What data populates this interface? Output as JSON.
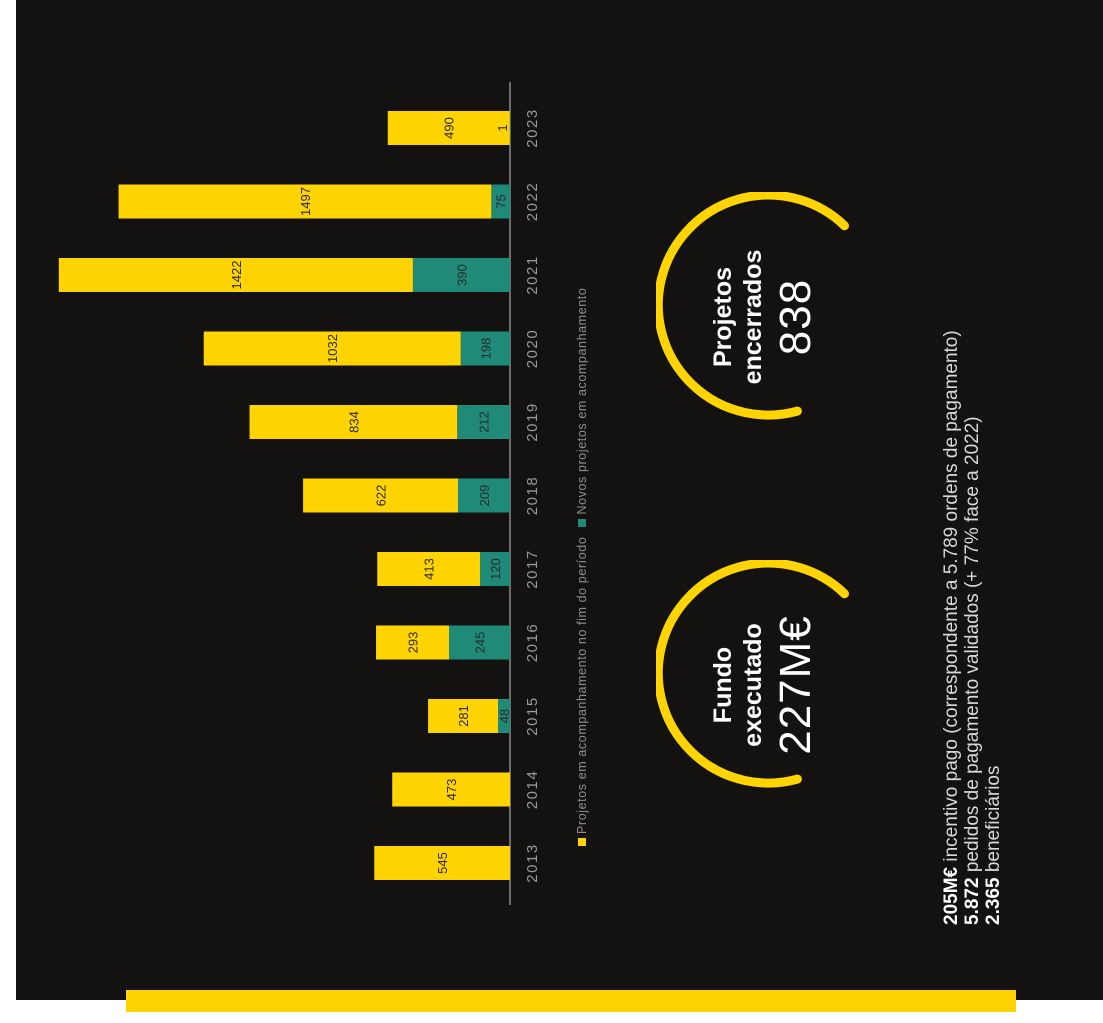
{
  "chart_data": {
    "type": "bar",
    "orientation": "stacked",
    "categories": [
      "2013",
      "2014",
      "2015",
      "2016",
      "2017",
      "2018",
      "2019",
      "2020",
      "2021",
      "2022",
      "2023"
    ],
    "series": [
      {
        "name": "Projetos em acompanhamento no fim do período",
        "color": "#ffd400",
        "values": [
          545,
          473,
          281,
          293,
          413,
          622,
          834,
          1032,
          1422,
          1497,
          490
        ]
      },
      {
        "name": "Novos projetos em acompanhamento",
        "color": "#1f8a78",
        "values": [
          0,
          0,
          48,
          245,
          120,
          209,
          212,
          198,
          390,
          75,
          1
        ]
      }
    ],
    "legend": "bottom",
    "grid": false
  },
  "kpis": [
    {
      "title_line1": "Fundo",
      "title_line2": "executado",
      "value": "227M€"
    },
    {
      "title_line1": "Projetos",
      "title_line2": "encerrados",
      "value": "838"
    }
  ],
  "summary": [
    {
      "bold": "205M€",
      "text": " incentivo pago (correspondente a 5.789 ordens de pagamento)"
    },
    {
      "bold": "5.872",
      "text": " pedidos de pagamento validados (+ 77% face a 2022)"
    },
    {
      "bold": "2.365",
      "text": " beneficiários"
    }
  ],
  "colors": {
    "background": "#131211",
    "accent": "#ffd400",
    "teal": "#1f8a78",
    "text": "#ffffff"
  }
}
